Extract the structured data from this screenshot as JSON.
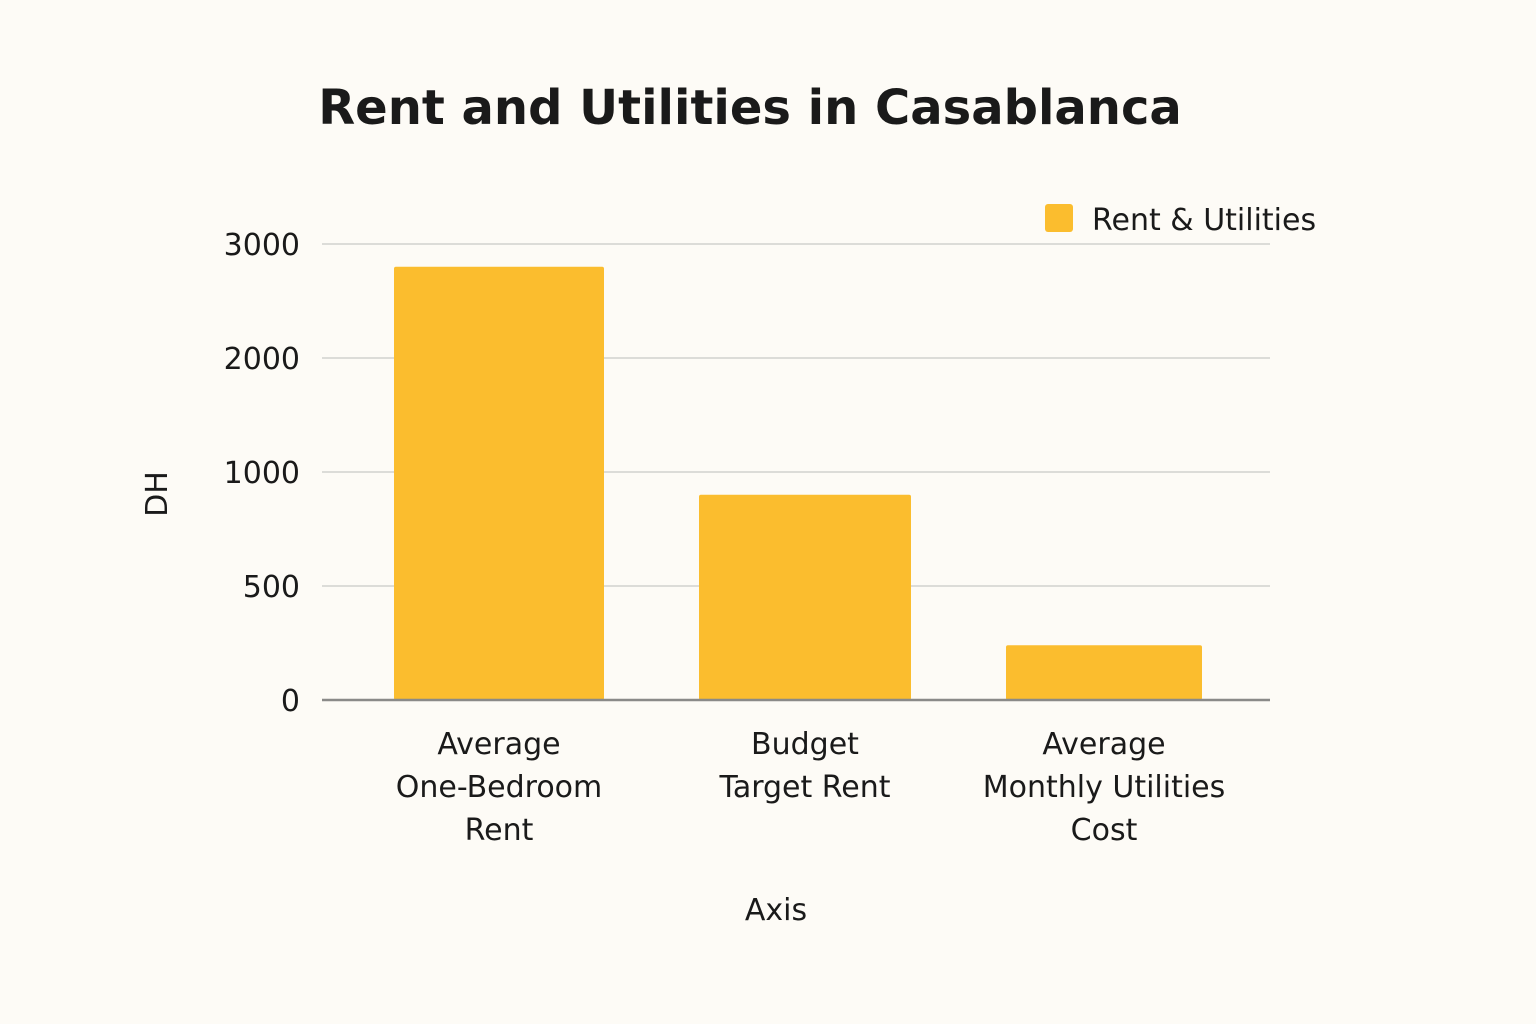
{
  "chart_data": {
    "type": "bar",
    "title": "Rent and Utilities in Casablanca",
    "xlabel": "Axis",
    "ylabel": "DH",
    "categories": [
      [
        "Average",
        "One-Bedroom",
        "Rent"
      ],
      [
        "Budget",
        "Target Rent"
      ],
      [
        "Average",
        "Monthly Utilities",
        "Cost"
      ]
    ],
    "series": [
      {
        "name": "Rent & Utilities",
        "values": [
          2800,
          900,
          240
        ],
        "color": "#fbbd2e"
      }
    ],
    "yticks": [
      0,
      500,
      1000,
      2000,
      3000
    ],
    "ylim": [
      0,
      3000
    ],
    "grid": true,
    "legend_position": "top-right"
  }
}
